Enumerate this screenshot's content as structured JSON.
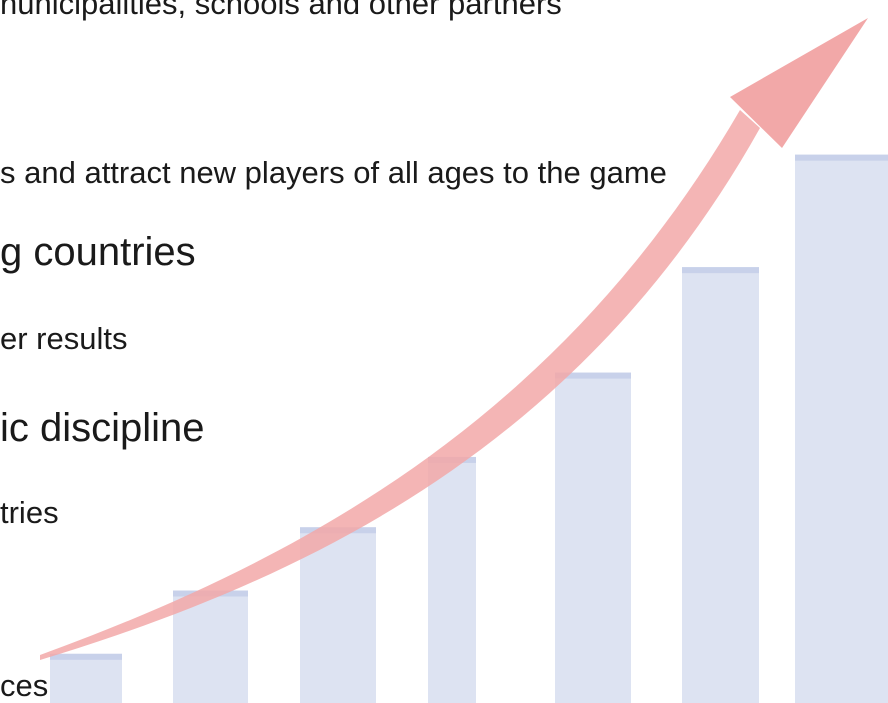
{
  "slide": {
    "lines": [
      "nunicipalities, schools and other partners",
      "s and attract new players of all ages to the game",
      "g countries",
      "er results",
      "ic discipline",
      "tries",
      "ces"
    ]
  },
  "graphic": {
    "bar_levels": [
      0.07,
      0.16,
      0.25,
      0.35,
      0.47,
      0.62,
      0.78
    ],
    "bar_color": "#dde3f2",
    "bar_top_color": "#c8d1ea",
    "arrow_color": "#f2a8a8"
  }
}
